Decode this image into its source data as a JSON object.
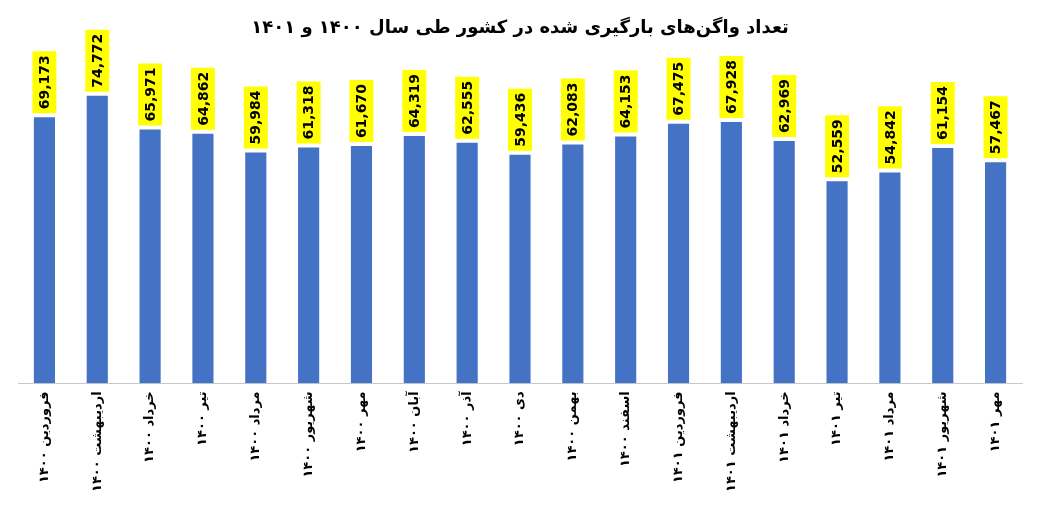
{
  "chart_data": {
    "type": "bar",
    "title": "تعداد واگن‌های بارگیری شده در کشور طی سال ۱۴۰۰ و ۱۴۰۱",
    "categories": [
      "فروردین ۱۴۰۰",
      "اردیبهشت ۱۴۰۰",
      "خرداد ۱۴۰۰",
      "تیر ۱۴۰۰",
      "مرداد ۱۴۰۰",
      "شهریور ۱۴۰۰",
      "مهر ۱۴۰۰",
      "آبان ۱۴۰۰",
      "آذر ۱۴۰۰",
      "دی ۱۴۰۰",
      "بهمن ۱۴۰۰",
      "اسفند ۱۴۰۰",
      "فروردین ۱۴۰۱",
      "اردیبهشت ۱۴۰۱",
      "خرداد ۱۴۰۱",
      "تیر ۱۴۰۱",
      "مرداد ۱۴۰۱",
      "شهریور ۱۴۰۱",
      "مهر ۱۴۰۱"
    ],
    "values": [
      69173,
      74772,
      65971,
      64862,
      59984,
      61318,
      61670,
      64319,
      62555,
      59436,
      62083,
      64153,
      67475,
      67928,
      62969,
      52559,
      54842,
      61154,
      57467
    ],
    "color": "#4472c4",
    "value_labels": [
      "69,173",
      "74,772",
      "65,971",
      "64,862",
      "59,984",
      "61,318",
      "61,670",
      "64,319",
      "62,555",
      "59,436",
      "62,083",
      "64,153",
      "67,475",
      "67,928",
      "62,969",
      "52,559",
      "54,842",
      "61,154",
      "57,467"
    ],
    "tick_labels": "x",
    "grid": false,
    "legend": false
  }
}
